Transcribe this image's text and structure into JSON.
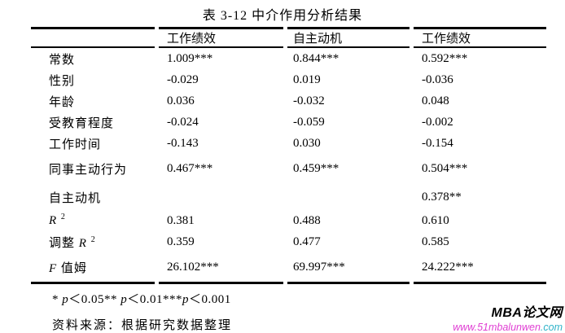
{
  "page": {
    "title": "表 3-12 中介作用分析结果"
  },
  "table": {
    "header": [
      "",
      "工作绩效",
      "自主动机",
      "工作绩效"
    ],
    "rows": [
      {
        "label": [
          {
            "t": "常数"
          }
        ],
        "values": [
          "1.009***",
          "0.844***",
          "0.592***"
        ]
      },
      {
        "label": [
          {
            "t": "性别"
          }
        ],
        "values": [
          "-0.029",
          "0.019",
          "-0.036"
        ]
      },
      {
        "label": [
          {
            "t": "年龄"
          }
        ],
        "values": [
          "0.036",
          "-0.032",
          "0.048"
        ]
      },
      {
        "label": [
          {
            "t": "受教育程度"
          }
        ],
        "values": [
          "-0.024",
          "-0.059",
          "-0.002"
        ]
      },
      {
        "label": [
          {
            "t": "工作时间"
          }
        ],
        "values": [
          "-0.143",
          "0.030",
          "-0.154"
        ]
      },
      {
        "label": [
          {
            "t": "同事主动行为"
          }
        ],
        "values": [
          "0.467***",
          "0.459***",
          "0.504***"
        ]
      },
      {
        "label": [
          {
            "t": "自主动机"
          }
        ],
        "values": [
          "",
          "",
          "0.378**"
        ]
      },
      {
        "label": [
          {
            "t": "R ",
            "i": true
          },
          {
            "t": "2",
            "sup": true
          }
        ],
        "values": [
          "0.381",
          "0.488",
          "0.610"
        ]
      },
      {
        "label": [
          {
            "t": "调整 "
          },
          {
            "t": "R ",
            "i": true
          },
          {
            "t": "2",
            "sup": true
          }
        ],
        "values": [
          "0.359",
          "0.477",
          "0.585"
        ]
      },
      {
        "label": [
          {
            "t": "F",
            "i": true
          },
          {
            "t": " 值姆"
          }
        ],
        "values": [
          "26.102***",
          "69.997***",
          "24.222***"
        ]
      }
    ]
  },
  "notes": {
    "significance": [
      {
        "t": "* "
      },
      {
        "t": "p",
        "i": true
      },
      {
        "t": "＜0.05** "
      },
      {
        "t": "p",
        "i": true
      },
      {
        "t": "＜0.01***"
      },
      {
        "t": "p",
        "i": true
      },
      {
        "t": "＜0.001"
      }
    ],
    "source": "资料来源：根据研究数据整理"
  },
  "watermark": {
    "brand": "MBA论文网",
    "url_main": "www.51mbalunwen",
    "url_suffix": ".com",
    "brand_color": "#000000",
    "url_main_color": "#e03ed3",
    "url_suffix_color": "#2fb3c9"
  }
}
